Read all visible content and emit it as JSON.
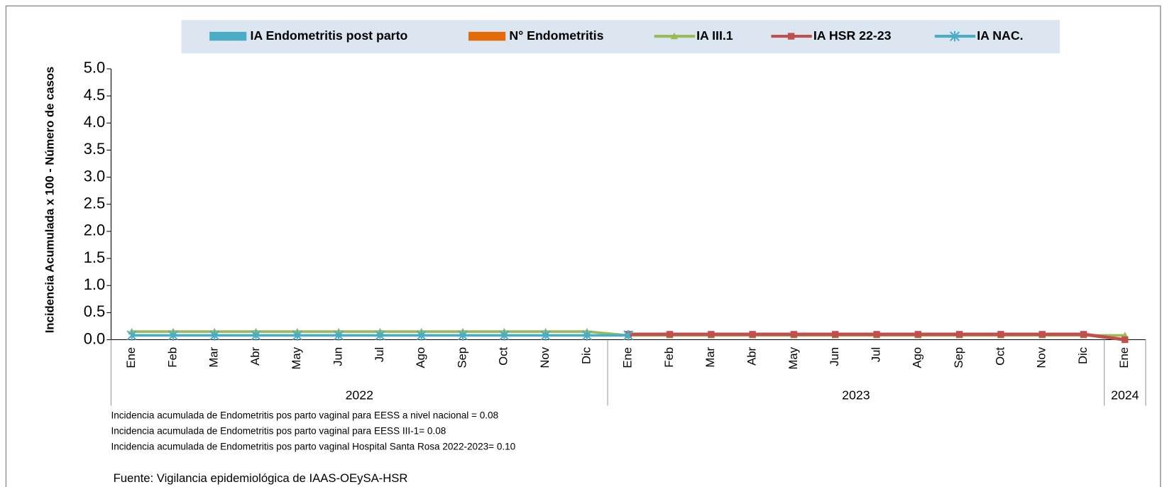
{
  "chart_data": {
    "type": "bar_line",
    "y_label": "Incidencia Acumulada x 100 - Número de casos",
    "categories": [
      "Ene",
      "Feb",
      "Mar",
      "Abr",
      "May",
      "Jun",
      "Jul",
      "Ago",
      "Sep",
      "Oct",
      "Nov",
      "Dic",
      "Ene",
      "Feb",
      "Mar",
      "Abr",
      "May",
      "Jun",
      "Jul",
      "Ago",
      "Sep",
      "Oct",
      "Nov",
      "Dic",
      "Ene"
    ],
    "year_groups": [
      {
        "label": "2022",
        "count": 12
      },
      {
        "label": "2023",
        "count": 12
      },
      {
        "label": "2024",
        "count": 1
      }
    ],
    "series": [
      {
        "name": "IA Endometritis post parto",
        "kind": "bar",
        "color": "#4bacc6",
        "values": [
          0,
          0,
          0,
          0,
          0,
          0,
          0,
          0,
          0,
          0,
          0,
          0,
          0,
          0,
          0,
          0,
          0,
          0,
          0,
          0,
          0,
          0,
          0,
          0,
          0
        ]
      },
      {
        "name": "N°  Endometritis",
        "kind": "bar",
        "color": "#e36c09",
        "values": [
          0,
          0,
          0,
          0,
          0,
          0,
          0,
          0,
          0,
          0,
          0,
          0,
          0,
          0,
          0,
          0,
          0,
          0,
          0,
          0,
          0,
          0,
          0,
          0,
          0
        ]
      },
      {
        "name": "IA  III.1",
        "kind": "line",
        "marker": "triangle",
        "color": "#9bbb59",
        "values": [
          0.15,
          0.15,
          0.15,
          0.15,
          0.15,
          0.15,
          0.15,
          0.15,
          0.15,
          0.15,
          0.15,
          0.15,
          0.08,
          0.08,
          0.08,
          0.08,
          0.08,
          0.08,
          0.08,
          0.08,
          0.08,
          0.08,
          0.08,
          0.08,
          0.08
        ]
      },
      {
        "name": "IA HSR 22-23",
        "kind": "line",
        "marker": "square",
        "color": "#c0504d",
        "values": [
          null,
          null,
          null,
          null,
          null,
          null,
          null,
          null,
          null,
          null,
          null,
          null,
          0.1,
          0.1,
          0.1,
          0.1,
          0.1,
          0.1,
          0.1,
          0.1,
          0.1,
          0.1,
          0.1,
          0.1,
          0
        ]
      },
      {
        "name": "IA  NAC.",
        "kind": "line",
        "marker": "asterisk",
        "color": "#4bacc6",
        "values": [
          0.08,
          0.08,
          0.08,
          0.08,
          0.08,
          0.08,
          0.08,
          0.08,
          0.08,
          0.08,
          0.08,
          0.08,
          0.08,
          null,
          null,
          null,
          null,
          null,
          null,
          null,
          null,
          null,
          null,
          null,
          null
        ]
      }
    ],
    "ylim": [
      0,
      5
    ],
    "yticks": [
      {
        "value": 0,
        "label": "0.0"
      },
      {
        "value": 0.5,
        "label": "0.5"
      },
      {
        "value": 1,
        "label": "1.0"
      },
      {
        "value": 1.5,
        "label": "1.5"
      },
      {
        "value": 2,
        "label": "2.0"
      },
      {
        "value": 2.5,
        "label": "2.5"
      },
      {
        "value": 3,
        "label": "3.0"
      },
      {
        "value": 3.5,
        "label": "3.5"
      },
      {
        "value": 4,
        "label": "4.0"
      },
      {
        "value": 4.5,
        "label": "4.5"
      },
      {
        "value": 5,
        "label": "5.0"
      }
    ],
    "grid": false,
    "legend": "top",
    "notes": [
      "Incidencia acumulada de Endometritis pos parto vaginal para EESS a nivel nacional = 0.08",
      "Incidencia acumulada de Endometritis pos parto vaginal para EESS III-1= 0.08",
      "Incidencia acumulada de Endometritis pos parto vaginal Hospital Santa Rosa  2022-2023= 0.10"
    ],
    "source": "Fuente: Vigilancia epidemiológica de IAAS-OEySA-HSR"
  }
}
